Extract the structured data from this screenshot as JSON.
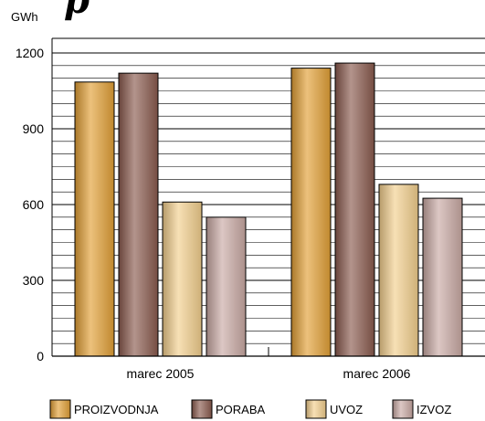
{
  "page": {
    "title_fragment": "p"
  },
  "chart_data": {
    "type": "bar",
    "unit_label": "GWh",
    "categories": [
      "marec 2005",
      "marec 2006"
    ],
    "series": [
      {
        "name": "PROIZVODNJA",
        "values": [
          1085,
          1140
        ],
        "color": "#e2a036"
      },
      {
        "name": "PORABA",
        "values": [
          1120,
          1160
        ],
        "color": "#8a5a4e"
      },
      {
        "name": "UVOZ",
        "values": [
          610,
          680
        ],
        "color": "#f2cf8d"
      },
      {
        "name": "IZVOZ",
        "values": [
          550,
          625
        ],
        "color": "#c9a9a4"
      }
    ],
    "ylim": [
      0,
      1200
    ],
    "yticks": [
      0,
      300,
      600,
      900,
      1200
    ],
    "minor_grid_step": 50,
    "grid": true,
    "legend_position": "bottom"
  }
}
